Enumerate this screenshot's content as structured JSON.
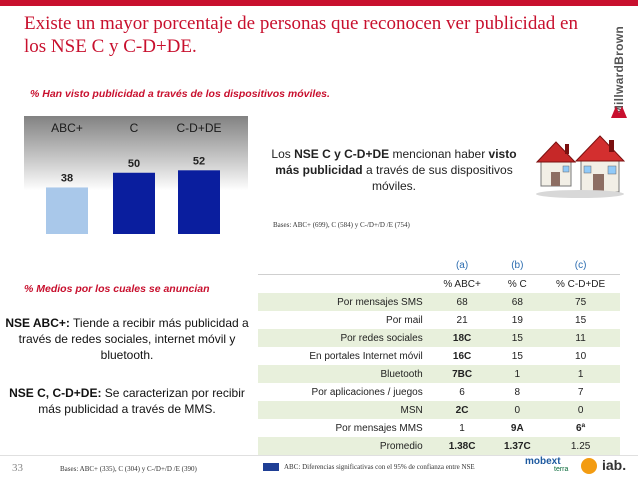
{
  "title": "Existe un mayor porcentaje de personas que reconocen ver publicidad en los NSE C y C-D+DE.",
  "brand": {
    "logo_text": "MillwardBrown",
    "accent": "#c8102e"
  },
  "section1": {
    "heading": "% Han visto publicidad a través de los dispositivos móviles."
  },
  "chart_data": {
    "type": "bar",
    "title": "% Han visto publicidad a través de los dispositivos móviles.",
    "categories": [
      "ABC+",
      "C",
      "C-D+DE"
    ],
    "values": [
      38,
      50,
      52
    ],
    "value_labels": [
      "38",
      "50",
      "52"
    ],
    "colors": [
      "#a9c8ea",
      "#0a1e9e",
      "#0a1e9e"
    ],
    "ylim": [
      0,
      80
    ],
    "xlabel": "",
    "ylabel": ""
  },
  "callout": {
    "prefix": "Los ",
    "bold1": "NSE C y C-D+DE",
    "middle": " mencionan haber ",
    "bold2": "visto más publicidad",
    "suffix": " a través de sus dispositivos móviles."
  },
  "bases_top": "Bases: ABC+ (699), C (584) y C-/D+/D /E (754)",
  "section2": {
    "heading": "% Medios por los cuales se anuncian"
  },
  "left_notes": {
    "p1_bold": "NSE ABC+:",
    "p1_text": " Tiende a recibir más publicidad a través de redes sociales, internet móvil y bluetooth.",
    "p2_bold": "NSE C, C-D+DE:",
    "p2_text": " Se caracterizan por recibir más publicidad a través de MMS."
  },
  "table": {
    "codes": [
      "(a)",
      "(b)",
      "(c)"
    ],
    "headers": [
      "% ABC+",
      "% C",
      "% C-D+DE"
    ],
    "rows": [
      {
        "label": "Por mensajes SMS",
        "values": [
          "68",
          "68",
          "75"
        ]
      },
      {
        "label": "Por mail",
        "values": [
          "21",
          "19",
          "15"
        ]
      },
      {
        "label": "Por redes sociales",
        "values": [
          "18C",
          "15",
          "11"
        ]
      },
      {
        "label": "En portales Internet móvil",
        "values": [
          "16C",
          "15",
          "10"
        ]
      },
      {
        "label": "Bluetooth",
        "values": [
          "7BC",
          "1",
          "1"
        ]
      },
      {
        "label": "Por aplicaciones / juegos",
        "values": [
          "6",
          "8",
          "7"
        ]
      },
      {
        "label": "MSN",
        "values": [
          "2C",
          "0",
          "0"
        ]
      },
      {
        "label": "Por mensajes MMS",
        "values": [
          "1",
          "9A",
          "6ª"
        ]
      },
      {
        "label": "Promedio",
        "values": [
          "1.38C",
          "1.37C",
          "1.25"
        ]
      }
    ]
  },
  "footer": {
    "page": "33",
    "bases": "Bases: ABC+ (335), C (304) y C-/D+/D /E (390)",
    "legend": "ABC: Diferencias significativas con el 95% de confianza entre NSE",
    "logo1": "mobext",
    "logo2": "terra",
    "logo3": "iab."
  }
}
